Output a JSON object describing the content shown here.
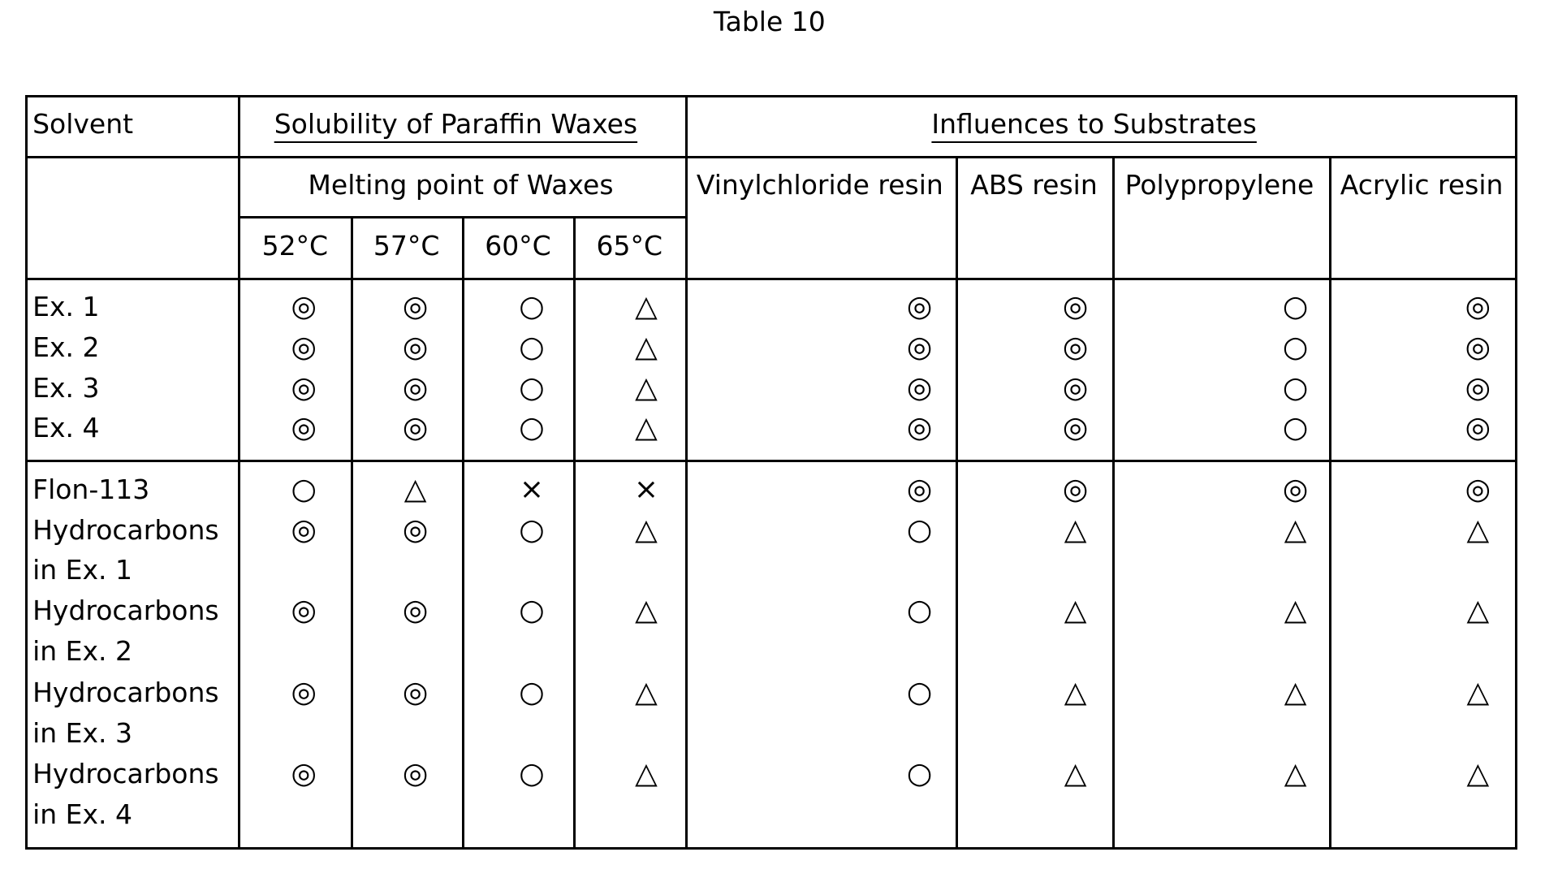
{
  "title": "Table 10",
  "header": {
    "solvent": "Solvent",
    "solubility": "Solubility of Paraffin Waxes",
    "influences": "Influences to Substrates",
    "melting": "Melting point of Waxes",
    "temps": [
      "52°C",
      "57°C",
      "60°C",
      "65°C"
    ],
    "substrates": [
      "Vinylchloride resin",
      "ABS resin",
      "Polypropylene",
      "Acrylic resin"
    ]
  },
  "rows": [
    {
      "solvent": "Ex. 1",
      "values": [
        "◎",
        "◎",
        "○",
        "△",
        "◎",
        "◎",
        "○",
        "◎"
      ]
    },
    {
      "solvent": "Ex. 2",
      "values": [
        "◎",
        "◎",
        "○",
        "△",
        "◎",
        "◎",
        "○",
        "◎"
      ]
    },
    {
      "solvent": "Ex. 3",
      "values": [
        "◎",
        "◎",
        "○",
        "△",
        "◎",
        "◎",
        "○",
        "◎"
      ]
    },
    {
      "solvent": "Ex. 4",
      "values": [
        "◎",
        "◎",
        "○",
        "△",
        "◎",
        "◎",
        "○",
        "◎"
      ]
    },
    {
      "solvent": "Flon-113",
      "values": [
        "○",
        "△",
        "×",
        "×",
        "◎",
        "◎",
        "◎",
        "◎"
      ]
    },
    {
      "solvent": "Hydrocarbons in Ex. 1",
      "values": [
        "◎",
        "◎",
        "○",
        "△",
        "○",
        "△",
        "△",
        "△"
      ]
    },
    {
      "solvent": "Hydrocarbons in Ex. 2",
      "values": [
        "◎",
        "◎",
        "○",
        "△",
        "○",
        "△",
        "△",
        "△"
      ]
    },
    {
      "solvent": "Hydrocarbons in Ex. 3",
      "values": [
        "◎",
        "◎",
        "○",
        "△",
        "○",
        "△",
        "△",
        "△"
      ]
    },
    {
      "solvent": "Hydrocarbons in Ex. 4",
      "values": [
        "◎",
        "◎",
        "○",
        "△",
        "○",
        "△",
        "△",
        "△"
      ]
    }
  ]
}
